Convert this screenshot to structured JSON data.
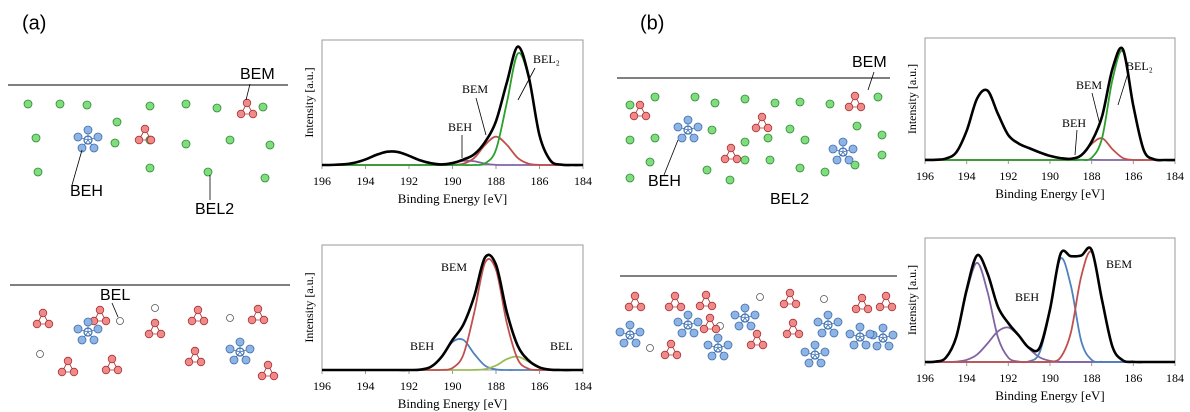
{
  "panels": [
    "(a)",
    "(b)"
  ],
  "schematic_labels": {
    "a_top": [
      "BEM",
      "BEH",
      "BEL2"
    ],
    "a_bottom": [
      "BEL"
    ],
    "b_top": [
      "BEM",
      "BEH",
      "BEL2"
    ]
  },
  "chart_data": [
    {
      "type": "line",
      "xlabel": "Binding Energy [eV]",
      "ylabel": "Intensity [a.u.]",
      "annotations": [
        "BEL₂",
        "BEM",
        "BEH"
      ],
      "x": [
        196,
        195.5,
        195,
        194.5,
        194,
        193.5,
        193,
        192.5,
        192,
        191.5,
        191,
        190.5,
        190,
        189.5,
        189,
        188.5,
        188,
        187.5,
        187,
        186.5,
        186,
        185.5,
        185,
        184.5,
        184
      ],
      "xlim": [
        196,
        184
      ],
      "xticks": [
        196,
        194,
        192,
        190,
        188,
        186,
        184
      ],
      "ylim": [
        0,
        110
      ],
      "series": [
        {
          "color": "#8064a2",
          "values": [
            0,
            0.1,
            0.6,
            2.0,
            4.9,
            8.9,
            11.7,
            11.4,
            8.1,
            4.2,
            1.6,
            0.5,
            1.6,
            3.7,
            3.3,
            1.1,
            0.1,
            0,
            0,
            0,
            0,
            0,
            0,
            0,
            0
          ]
        },
        {
          "color": "#c0504d",
          "values": [
            0,
            0,
            0,
            0,
            0,
            0,
            0,
            0,
            0,
            0,
            0,
            0,
            0.1,
            1.1,
            6.2,
            17.7,
            25,
            17.7,
            6.2,
            1.1,
            0.1,
            0,
            0,
            0,
            0
          ]
        },
        {
          "color": "#2ca02c",
          "values": [
            0,
            0,
            0,
            0,
            0,
            0,
            0,
            0,
            0,
            0,
            0,
            0,
            0,
            0,
            0,
            1.5,
            13.5,
            55,
            98,
            77,
            26,
            4,
            0.3,
            0,
            0
          ]
        },
        {
          "color": "#000000",
          "values": [
            0,
            0.1,
            0.6,
            2.0,
            4.9,
            8.9,
            11.7,
            11.4,
            8.1,
            4.2,
            1.6,
            0.5,
            1.7,
            4.8,
            9.5,
            20.3,
            38.6,
            72.7,
            104.2,
            78.1,
            26.1,
            4,
            0.3,
            0,
            0
          ]
        }
      ]
    },
    {
      "type": "line",
      "xlabel": "Binding Energy [eV]",
      "ylabel": "Intensity [a.u.]",
      "annotations": [
        "BEM",
        "BEH",
        "BEL"
      ],
      "x": [
        196,
        195.5,
        195,
        194.5,
        194,
        193.5,
        193,
        192.5,
        192,
        191.5,
        191,
        190.5,
        190,
        189.5,
        189,
        188.5,
        188,
        187.5,
        187,
        186.5,
        186,
        185.5,
        185,
        184.5,
        184
      ],
      "xlim": [
        196,
        184
      ],
      "xticks": [
        196,
        194,
        192,
        190,
        188,
        186,
        184
      ],
      "ylim": [
        0,
        110
      ],
      "series": [
        {
          "color": "#4f81bd",
          "values": [
            0,
            0,
            0,
            0,
            0,
            0,
            0,
            0,
            0,
            0.3,
            2.7,
            11.5,
            24.7,
            26.5,
            14.2,
            3.8,
            0.5,
            0,
            0,
            0,
            0,
            0,
            0,
            0,
            0
          ]
        },
        {
          "color": "#9bbb59",
          "values": [
            0,
            0,
            0,
            0,
            0,
            0,
            0,
            0,
            0,
            0,
            0,
            0,
            0,
            0,
            0.1,
            0.8,
            3.9,
            9.6,
            11.8,
            7.3,
            2.2,
            0.3,
            0,
            0,
            0
          ]
        },
        {
          "color": "#c0504d",
          "values": [
            0,
            0,
            0,
            0,
            0,
            0,
            0,
            0,
            0,
            0,
            0,
            0.1,
            1.8,
            13.5,
            50.6,
            94.6,
            88.2,
            41.1,
            9.5,
            1.1,
            0.1,
            0,
            0,
            0,
            0
          ]
        },
        {
          "color": "#000000",
          "values": [
            0,
            0,
            0,
            0,
            0,
            0,
            0,
            0,
            0,
            0.3,
            2.7,
            11.6,
            26.5,
            40.0,
            64.9,
            99.2,
            92.6,
            50.7,
            21.3,
            8.4,
            2.3,
            0.3,
            0,
            0,
            0
          ]
        }
      ]
    },
    {
      "type": "line",
      "xlabel": "Binding Energy [eV]",
      "ylabel": "Intensity [a.u.]",
      "annotations": [
        "BEL₂",
        "BEM",
        "BEH"
      ],
      "x": [
        196,
        195.5,
        195,
        194.5,
        194,
        193.5,
        193,
        192.5,
        192,
        191.5,
        191,
        190.5,
        190,
        189.5,
        189,
        188.5,
        188,
        187.5,
        187,
        186.5,
        186,
        185.5,
        185,
        184.5,
        184
      ],
      "xlim": [
        196,
        184
      ],
      "xticks": [
        196,
        194,
        192,
        190,
        188,
        186,
        184
      ],
      "ylim": [
        0,
        110
      ],
      "series": [
        {
          "color": "#8064a2",
          "values": [
            0.1,
            0.2,
            1.3,
            6.9,
            26.3,
            55.4,
            62.6,
            41.6,
            22.4,
            14.8,
            10.7,
            6.9,
            3.7,
            1.7,
            0.7,
            0.2,
            0.1,
            0,
            0,
            0,
            0,
            0,
            0,
            0,
            0
          ]
        },
        {
          "color": "#c0504d",
          "values": [
            0,
            0,
            0,
            0,
            0,
            0,
            0,
            0,
            0,
            0,
            0,
            0,
            0,
            0,
            0.4,
            4.0,
            14.5,
            19.6,
            9.7,
            1.8,
            0.1,
            0,
            0,
            0,
            0
          ]
        },
        {
          "color": "#2ca02c",
          "values": [
            0,
            0,
            0,
            0,
            0,
            0,
            0,
            0,
            0,
            0,
            0,
            0,
            0,
            0,
            0,
            0.1,
            2.0,
            19.8,
            72.6,
            98,
            48.7,
            8.9,
            0.6,
            0,
            0
          ]
        },
        {
          "color": "#000000",
          "values": [
            0.1,
            0.2,
            1.3,
            6.9,
            26.3,
            55.4,
            62.6,
            41.6,
            22.4,
            14.8,
            10.7,
            6.9,
            3.7,
            1.7,
            1.1,
            4.3,
            16.6,
            39.4,
            82.3,
            99.8,
            48.8,
            8.9,
            0.6,
            0,
            0
          ]
        }
      ]
    },
    {
      "type": "line",
      "xlabel": "Binding Energy [eV]",
      "ylabel": "Intensity [a.u.]",
      "annotations": [
        "BEM",
        "BEH"
      ],
      "x": [
        196,
        195.5,
        195,
        194.5,
        194,
        193.5,
        193,
        192.5,
        192,
        191.5,
        191,
        190.5,
        190,
        189.5,
        189,
        188.5,
        188,
        187.5,
        187,
        186.5,
        186,
        185.5,
        185,
        184.5,
        184
      ],
      "xlim": [
        196,
        184
      ],
      "xticks": [
        196,
        194,
        192,
        190,
        188,
        186,
        184
      ],
      "ylim": [
        0,
        100
      ],
      "series": [
        {
          "color": "#8064a2",
          "values": [
            0,
            0.3,
            3.5,
            19.9,
            56.6,
            80,
            56.6,
            19.9,
            3.5,
            0.3,
            0,
            0,
            0,
            0,
            0,
            0,
            0,
            0,
            0,
            0,
            0,
            0,
            0,
            0,
            0
          ]
        },
        {
          "color": "#8064a2",
          "values": [
            0,
            0,
            0,
            0.3,
            1.7,
            6.0,
            14.9,
            24.7,
            27.8,
            21.1,
            10.9,
            3.8,
            0.9,
            0.1,
            0,
            0,
            0,
            0,
            0,
            0,
            0,
            0,
            0,
            0,
            0
          ]
        },
        {
          "color": "#4f81bd",
          "values": [
            0,
            0,
            0,
            0,
            0,
            0,
            0,
            0,
            0,
            0,
            0.5,
            7.6,
            41.4,
            83.3,
            61.7,
            16.8,
            1.7,
            0.1,
            0,
            0,
            0,
            0,
            0,
            0,
            0
          ]
        },
        {
          "color": "#c0504d",
          "values": [
            0,
            0,
            0,
            0,
            0,
            0,
            0,
            0,
            0,
            0,
            0,
            0,
            0.2,
            3.5,
            23.6,
            69.1,
            88.6,
            49.6,
            12.2,
            1.3,
            0.1,
            0,
            0,
            0,
            0
          ]
        },
        {
          "color": "#000000",
          "values": [
            0,
            0.3,
            3.5,
            20.2,
            58.3,
            86.0,
            71.5,
            44.6,
            31.3,
            21.4,
            11.4,
            11.4,
            42.5,
            86.9,
            85.3,
            85.9,
            90.3,
            49.7,
            12.2,
            1.3,
            0.1,
            0,
            0,
            0,
            0
          ]
        }
      ]
    }
  ]
}
